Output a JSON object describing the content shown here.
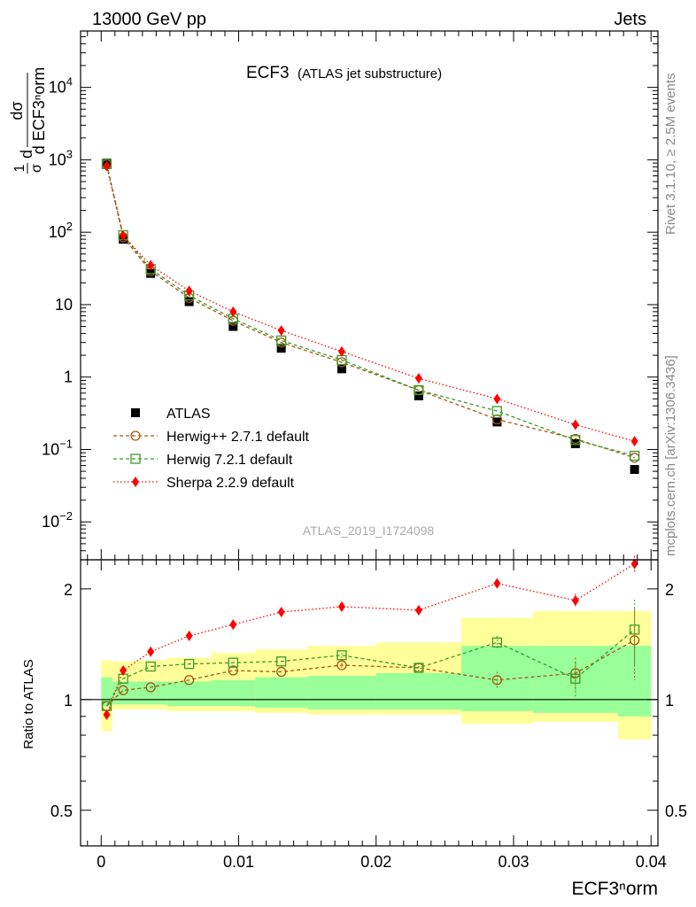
{
  "header": {
    "left": "13000 GeV pp",
    "right": "Jets"
  },
  "side_labels": {
    "rivet": "Rivet 3.1.10, ≥ 2.5M events",
    "mcplots": "mcplots.cern.ch [arXiv:1306.3436]"
  },
  "colors": {
    "atlas": "#000000",
    "herwigpp": "#a05a14",
    "herwig7": "#3c9a28",
    "sherpa": "#ff0000",
    "band_outer": "#ffff99",
    "band_inner": "#99ff99"
  },
  "chart_data": [
    {
      "type": "scatter",
      "id": "main",
      "title_main": "ECF3",
      "title_sub": "(ATLAS jet substructure)",
      "watermark": "ATLAS_2019_I1724098",
      "ylabel": {
        "frac1_num": "1",
        "frac1_den": "σ",
        "prefix": "d",
        "frac2_num": "dσ",
        "frac2_den": "d ECF3ⁿorm"
      },
      "yscale": "log",
      "xlim": [
        -0.0015,
        0.0405
      ],
      "ylim": [
        0.003,
        60000
      ],
      "yticks": [
        {
          "value": 0.01,
          "base": "10",
          "exp": "−2"
        },
        {
          "value": 0.1,
          "base": "10",
          "exp": "−1"
        },
        {
          "value": 1,
          "base": "1",
          "exp": ""
        },
        {
          "value": 10,
          "base": "10",
          "exp": ""
        },
        {
          "value": 100,
          "base": "10",
          "exp": "2"
        },
        {
          "value": 1000,
          "base": "10",
          "exp": "3"
        },
        {
          "value": 10000,
          "base": "10",
          "exp": "4"
        }
      ],
      "x": [
        0.0004,
        0.0016,
        0.0036,
        0.0064,
        0.0096,
        0.0131,
        0.0175,
        0.0231,
        0.0288,
        0.0345,
        0.0388
      ],
      "series": [
        {
          "name": "ATLAS",
          "key": "atlas",
          "marker": "square",
          "values": [
            900,
            80,
            27,
            11,
            5.0,
            2.5,
            1.3,
            0.55,
            0.24,
            0.12,
            0.053
          ]
        },
        {
          "name": "Herwig++ 2.7.1 default",
          "key": "herwigpp",
          "marker": "circle",
          "values": [
            870,
            85,
            29,
            12.4,
            6.0,
            3.0,
            1.6,
            0.66,
            0.26,
            0.14,
            0.077
          ]
        },
        {
          "name": "Herwig 7.2.1 default",
          "key": "herwig7",
          "marker": "open-square",
          "values": [
            870,
            91,
            31,
            13.4,
            6.4,
            3.2,
            1.72,
            0.66,
            0.34,
            0.135,
            0.082
          ]
        },
        {
          "name": "Sherpa 2.2.9 default",
          "key": "sherpa",
          "marker": "diamond",
          "values": [
            820,
            89,
            35,
            15.5,
            8.0,
            4.4,
            2.25,
            0.96,
            0.5,
            0.22,
            0.13
          ]
        }
      ]
    },
    {
      "type": "scatter",
      "id": "ratio",
      "xlabel": "ECF3ⁿorm",
      "ylabel": "Ratio to ATLAS",
      "yscale": "log",
      "xlim": [
        -0.0015,
        0.0405
      ],
      "ylim": [
        0.4,
        2.4
      ],
      "yticks": [
        {
          "value": 0.5,
          "label": "0.5"
        },
        {
          "value": 1,
          "label": "1"
        },
        {
          "value": 2,
          "label": "2"
        }
      ],
      "xticks": [
        {
          "value": 0,
          "label": "0"
        },
        {
          "value": 0.01,
          "label": "0.01"
        },
        {
          "value": 0.02,
          "label": "0.02"
        },
        {
          "value": 0.03,
          "label": "0.03"
        },
        {
          "value": 0.04,
          "label": "0.04"
        }
      ],
      "bin_edges": [
        0,
        0.0008,
        0.0024,
        0.0048,
        0.008,
        0.0112,
        0.015,
        0.02,
        0.0262,
        0.0314,
        0.0376,
        0.04
      ],
      "band_inner": [
        [
          0.96,
          1.15
        ],
        [
          0.97,
          1.12
        ],
        [
          0.97,
          1.12
        ],
        [
          0.96,
          1.12
        ],
        [
          0.96,
          1.13
        ],
        [
          0.95,
          1.15
        ],
        [
          0.94,
          1.16
        ],
        [
          0.94,
          1.18
        ],
        [
          0.93,
          1.4
        ],
        [
          0.92,
          1.4
        ],
        [
          0.9,
          1.4
        ]
      ],
      "band_outer": [
        [
          0.82,
          1.28
        ],
        [
          0.94,
          1.27
        ],
        [
          0.94,
          1.28
        ],
        [
          0.93,
          1.3
        ],
        [
          0.93,
          1.34
        ],
        [
          0.92,
          1.37
        ],
        [
          0.91,
          1.4
        ],
        [
          0.91,
          1.43
        ],
        [
          0.86,
          1.67
        ],
        [
          0.87,
          1.74
        ],
        [
          0.78,
          1.74
        ]
      ],
      "x": [
        0.0004,
        0.0016,
        0.0036,
        0.0064,
        0.0096,
        0.0131,
        0.0175,
        0.0231,
        0.0288,
        0.0345,
        0.0388
      ],
      "series": [
        {
          "name": "Herwig++ 2.7.1 default",
          "key": "herwigpp",
          "marker": "circle",
          "values": [
            0.96,
            1.06,
            1.08,
            1.13,
            1.2,
            1.19,
            1.24,
            1.22,
            1.13,
            1.18,
            1.45
          ],
          "errors": [
            0,
            0,
            0,
            0,
            0,
            0,
            0.02,
            0.04,
            0.06,
            0.12,
            0.32
          ]
        },
        {
          "name": "Herwig 7.2.1 default",
          "key": "herwig7",
          "marker": "open-square",
          "values": [
            0.96,
            1.14,
            1.23,
            1.25,
            1.26,
            1.27,
            1.32,
            1.22,
            1.43,
            1.14,
            1.55
          ],
          "errors": [
            0,
            0,
            0,
            0,
            0,
            0,
            0.02,
            0.04,
            0.06,
            0.12,
            0.32
          ]
        },
        {
          "name": "Sherpa 2.2.9 default",
          "key": "sherpa",
          "marker": "diamond",
          "values": [
            0.91,
            1.2,
            1.35,
            1.49,
            1.6,
            1.73,
            1.79,
            1.75,
            2.07,
            1.86,
            2.34
          ],
          "errors": [
            0,
            0,
            0,
            0,
            0,
            0,
            0.02,
            0.04,
            0.06,
            0.08,
            0.12
          ]
        }
      ]
    }
  ]
}
